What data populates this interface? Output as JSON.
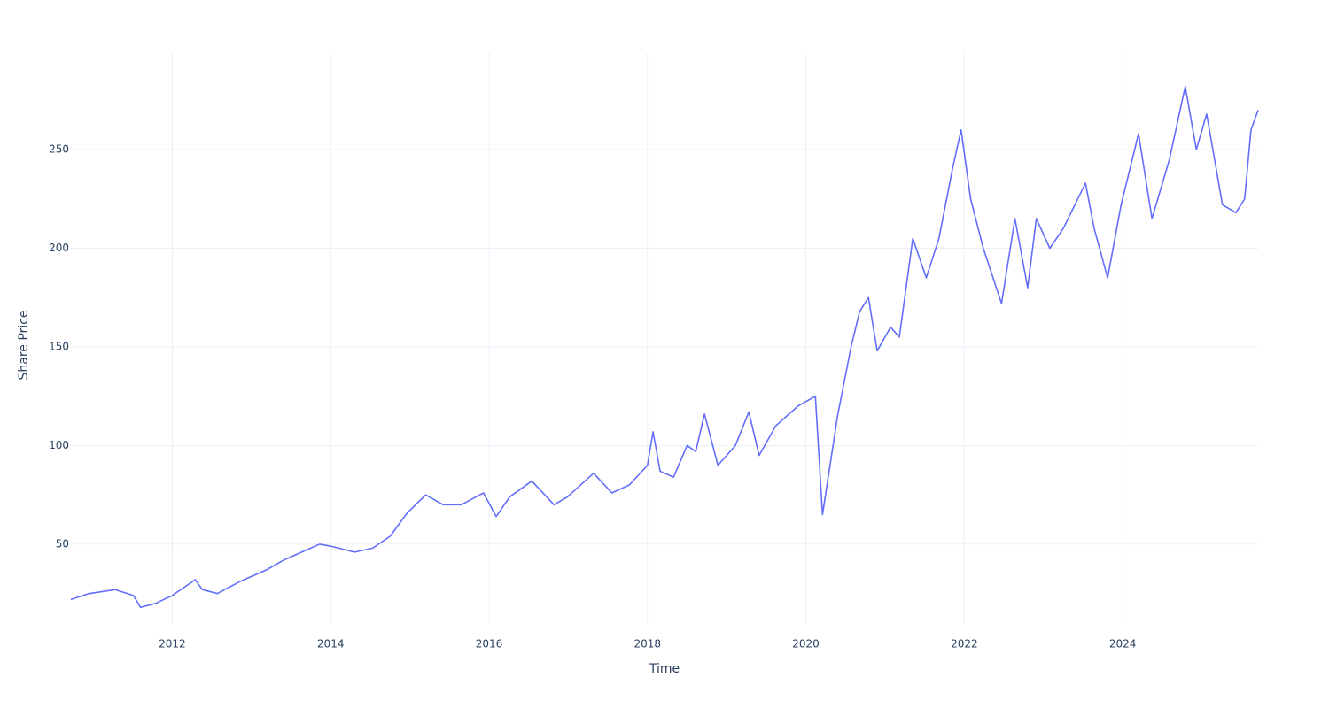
{
  "chart_data": {
    "type": "line",
    "x_label": "Time",
    "y_label": "Share Price",
    "x": [
      2010.72,
      2010.95,
      2011.28,
      2011.51,
      2011.6,
      2011.79,
      2012.0,
      2012.29,
      2012.38,
      2012.57,
      2012.85,
      2013.19,
      2013.41,
      2013.69,
      2013.86,
      2014.0,
      2014.3,
      2014.53,
      2014.75,
      2014.97,
      2015.2,
      2015.42,
      2015.65,
      2015.93,
      2016.09,
      2016.26,
      2016.54,
      2016.82,
      2016.99,
      2017.32,
      2017.55,
      2017.77,
      2018.0,
      2018.07,
      2018.16,
      2018.33,
      2018.5,
      2018.61,
      2018.72,
      2018.89,
      2019.11,
      2019.28,
      2019.41,
      2019.62,
      2019.9,
      2020.12,
      2020.21,
      2020.4,
      2020.57,
      2020.68,
      2020.79,
      2020.9,
      2021.07,
      2021.18,
      2021.35,
      2021.52,
      2021.68,
      2021.85,
      2021.96,
      2022.08,
      2022.24,
      2022.47,
      2022.64,
      2022.8,
      2022.91,
      2023.08,
      2023.25,
      2023.53,
      2023.64,
      2023.81,
      2023.98,
      2024.2,
      2024.37,
      2024.59,
      2024.79,
      2024.93,
      2025.06,
      2025.26,
      2025.43,
      2025.54,
      2025.62,
      2025.71
    ],
    "values": [
      22,
      25,
      27,
      24,
      18,
      20,
      24,
      32,
      27,
      25,
      31,
      37,
      42,
      47,
      50,
      49,
      46,
      48,
      54,
      66,
      75,
      70,
      70,
      76,
      64,
      74,
      82,
      70,
      74,
      86,
      76,
      80,
      90,
      107,
      87,
      84,
      100,
      97,
      116,
      90,
      100,
      117,
      95,
      110,
      120,
      125,
      65,
      115,
      150,
      168,
      175,
      148,
      160,
      155,
      205,
      185,
      205,
      240,
      260,
      225,
      200,
      172,
      215,
      180,
      215,
      200,
      210,
      233,
      210,
      185,
      222,
      258,
      215,
      245,
      282,
      250,
      268,
      222,
      218,
      225,
      260,
      270
    ],
    "color": "#636efa",
    "xlim": [
      2010.72,
      2025.71
    ],
    "xticks": [
      2012,
      2014,
      2016,
      2018,
      2020,
      2022,
      2024
    ],
    "ylim": [
      9.6,
      298.9
    ],
    "yticks": [
      50,
      100,
      150,
      200,
      250
    ],
    "grid": true
  }
}
